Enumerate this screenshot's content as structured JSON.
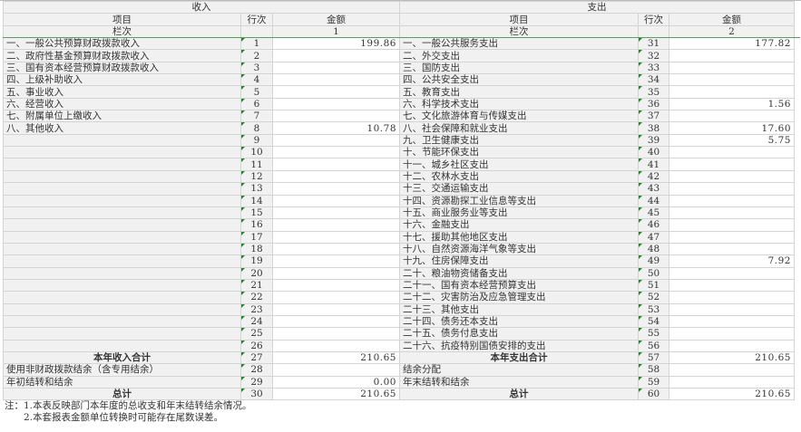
{
  "header": {
    "income_title": "收入",
    "expense_title": "支出",
    "item_label": "项目",
    "line_label": "行次",
    "amount_label": "金额",
    "column_label": "栏次",
    "income_col_no": "1",
    "expense_col_no": "2"
  },
  "rows": [
    {
      "l_item": "一、一般公共预算财政拨款收入",
      "l_no": "1",
      "l_amt": "199.86",
      "r_item": "一、一般公共服务支出",
      "r_no": "31",
      "r_amt": "177.82"
    },
    {
      "l_item": "二、政府性基金预算财政拨款收入",
      "l_no": "2",
      "l_amt": "",
      "r_item": "二、外交支出",
      "r_no": "32",
      "r_amt": ""
    },
    {
      "l_item": "三、国有资本经营预算财政拨款收入",
      "l_no": "3",
      "l_amt": "",
      "r_item": "三、国防支出",
      "r_no": "33",
      "r_amt": ""
    },
    {
      "l_item": "四、上级补助收入",
      "l_no": "4",
      "l_amt": "",
      "r_item": "四、公共安全支出",
      "r_no": "34",
      "r_amt": ""
    },
    {
      "l_item": "五、事业收入",
      "l_no": "5",
      "l_amt": "",
      "r_item": "五、教育支出",
      "r_no": "35",
      "r_amt": ""
    },
    {
      "l_item": "六、经营收入",
      "l_no": "6",
      "l_amt": "",
      "r_item": "六、科学技术支出",
      "r_no": "36",
      "r_amt": "1.56"
    },
    {
      "l_item": "七、附属单位上缴收入",
      "l_no": "7",
      "l_amt": "",
      "r_item": "七、文化旅游体育与传媒支出",
      "r_no": "37",
      "r_amt": ""
    },
    {
      "l_item": "八、其他收入",
      "l_no": "8",
      "l_amt": "10.78",
      "r_item": "八、社会保障和就业支出",
      "r_no": "38",
      "r_amt": "17.60"
    },
    {
      "l_item": "",
      "l_no": "9",
      "l_amt": "",
      "r_item": "九、卫生健康支出",
      "r_no": "39",
      "r_amt": "5.75"
    },
    {
      "l_item": "",
      "l_no": "10",
      "l_amt": "",
      "r_item": "十、节能环保支出",
      "r_no": "40",
      "r_amt": ""
    },
    {
      "l_item": "",
      "l_no": "11",
      "l_amt": "",
      "r_item": "十一、城乡社区支出",
      "r_no": "41",
      "r_amt": ""
    },
    {
      "l_item": "",
      "l_no": "12",
      "l_amt": "",
      "r_item": "十二、农林水支出",
      "r_no": "42",
      "r_amt": ""
    },
    {
      "l_item": "",
      "l_no": "13",
      "l_amt": "",
      "r_item": "十三、交通运输支出",
      "r_no": "43",
      "r_amt": ""
    },
    {
      "l_item": "",
      "l_no": "14",
      "l_amt": "",
      "r_item": "十四、资源勘探工业信息等支出",
      "r_no": "44",
      "r_amt": ""
    },
    {
      "l_item": "",
      "l_no": "15",
      "l_amt": "",
      "r_item": "十五、商业服务业等支出",
      "r_no": "45",
      "r_amt": ""
    },
    {
      "l_item": "",
      "l_no": "16",
      "l_amt": "",
      "r_item": "十六、金融支出",
      "r_no": "46",
      "r_amt": ""
    },
    {
      "l_item": "",
      "l_no": "17",
      "l_amt": "",
      "r_item": "十七、援助其他地区支出",
      "r_no": "47",
      "r_amt": ""
    },
    {
      "l_item": "",
      "l_no": "18",
      "l_amt": "",
      "r_item": "十八、自然资源海洋气象等支出",
      "r_no": "48",
      "r_amt": ""
    },
    {
      "l_item": "",
      "l_no": "19",
      "l_amt": "",
      "r_item": "十九、住房保障支出",
      "r_no": "49",
      "r_amt": "7.92"
    },
    {
      "l_item": "",
      "l_no": "20",
      "l_amt": "",
      "r_item": "二十、粮油物资储备支出",
      "r_no": "50",
      "r_amt": ""
    },
    {
      "l_item": "",
      "l_no": "21",
      "l_amt": "",
      "r_item": "二十一、国有资本经营预算支出",
      "r_no": "51",
      "r_amt": ""
    },
    {
      "l_item": "",
      "l_no": "22",
      "l_amt": "",
      "r_item": "二十二、灾害防治及应急管理支出",
      "r_no": "52",
      "r_amt": ""
    },
    {
      "l_item": "",
      "l_no": "23",
      "l_amt": "",
      "r_item": "二十三、其他支出",
      "r_no": "53",
      "r_amt": ""
    },
    {
      "l_item": "",
      "l_no": "24",
      "l_amt": "",
      "r_item": "二十四、债务还本支出",
      "r_no": "54",
      "r_amt": ""
    },
    {
      "l_item": "",
      "l_no": "25",
      "l_amt": "",
      "r_item": "二十五、债务付息支出",
      "r_no": "55",
      "r_amt": ""
    },
    {
      "l_item": "",
      "l_no": "26",
      "l_amt": "",
      "r_item": "二十六、抗疫特别国债安排的支出",
      "r_no": "56",
      "r_amt": ""
    },
    {
      "l_item": "本年收入合计",
      "l_no": "27",
      "l_amt": "210.65",
      "r_item": "本年支出合计",
      "r_no": "57",
      "r_amt": "210.65",
      "bold": true
    },
    {
      "l_item": "使用非财政拨款结余（含专用结余）",
      "l_no": "28",
      "l_amt": "",
      "r_item": "结余分配",
      "r_no": "58",
      "r_amt": ""
    },
    {
      "l_item": "年初结转和结余",
      "l_no": "29",
      "l_amt": "0.00",
      "r_item": "年末结转和结余",
      "r_no": "59",
      "r_amt": ""
    },
    {
      "l_item": "总计",
      "l_no": "30",
      "l_amt": "210.65",
      "r_item": "总计",
      "r_no": "60",
      "r_amt": "210.65",
      "bold": true
    }
  ],
  "notes": [
    "注：1.本表反映部门本年度的总收支和年末结转结余情况。",
    "　　2.本套报表金额单位转换时可能存在尾数误差。"
  ]
}
